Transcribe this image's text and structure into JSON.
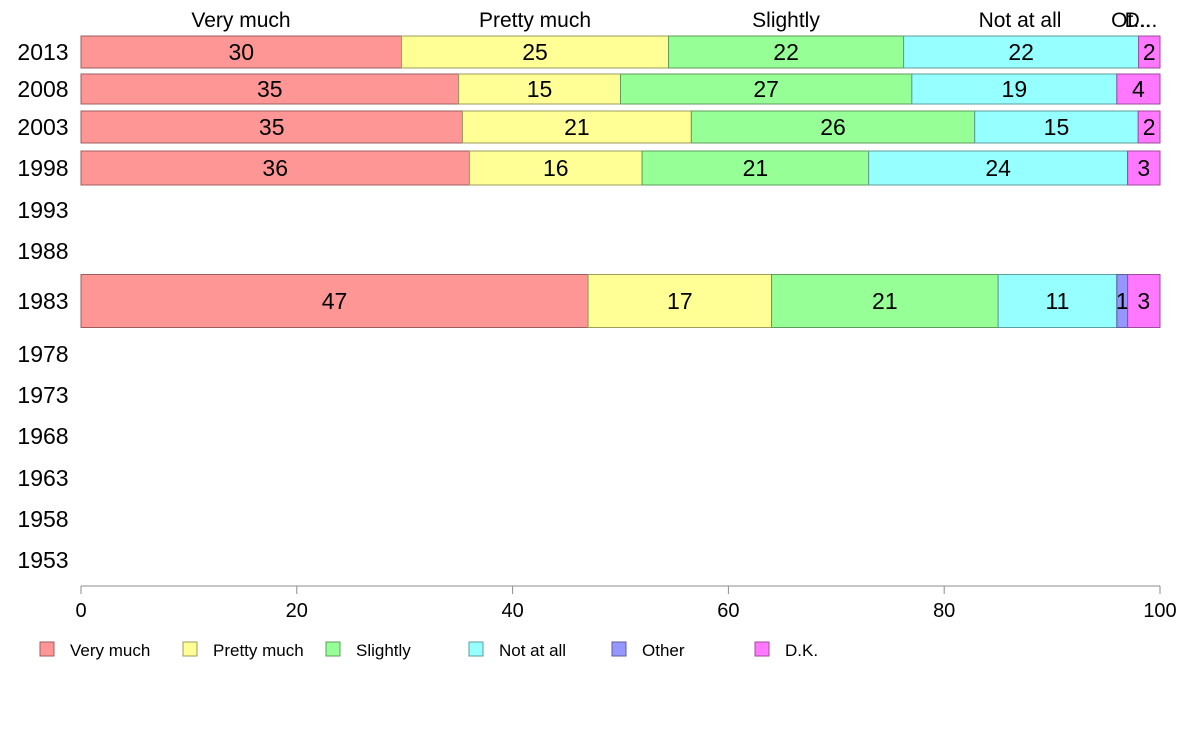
{
  "chart_data": {
    "type": "bar",
    "orientation": "horizontal",
    "stacked": true,
    "categories": [
      "2013",
      "2008",
      "2003",
      "1998",
      "1993",
      "1988",
      "1983",
      "1978",
      "1973",
      "1968",
      "1963",
      "1958",
      "1953"
    ],
    "column_headers": [
      "Very much",
      "Pretty much",
      "Slightly",
      "Not at all",
      "Ot...",
      "D..."
    ],
    "series": [
      {
        "name": "Very much",
        "color": "#ff9696",
        "values": [
          30,
          35,
          35,
          36,
          null,
          null,
          47,
          null,
          null,
          null,
          null,
          null,
          null
        ]
      },
      {
        "name": "Pretty much",
        "color": "#ffff96",
        "values": [
          25,
          15,
          21,
          16,
          null,
          null,
          17,
          null,
          null,
          null,
          null,
          null,
          null
        ]
      },
      {
        "name": "Slightly",
        "color": "#96ff96",
        "values": [
          22,
          27,
          26,
          21,
          null,
          null,
          21,
          null,
          null,
          null,
          null,
          null,
          null
        ]
      },
      {
        "name": "Not at all",
        "color": "#96ffff",
        "values": [
          22,
          19,
          15,
          24,
          null,
          null,
          11,
          null,
          null,
          null,
          null,
          null,
          null
        ]
      },
      {
        "name": "Other",
        "color": "#9696ff",
        "values": [
          0,
          0,
          0,
          0,
          null,
          null,
          1,
          null,
          null,
          null,
          null,
          null,
          null
        ]
      },
      {
        "name": "D.K.",
        "color": "#ff78ff",
        "values": [
          2,
          4,
          2,
          3,
          null,
          null,
          3,
          null,
          null,
          null,
          null,
          null,
          null
        ]
      }
    ],
    "xlim": [
      0,
      100
    ],
    "xticks": [
      0,
      20,
      40,
      60,
      80,
      100
    ],
    "legend_position": "bottom-left",
    "grid": false
  }
}
